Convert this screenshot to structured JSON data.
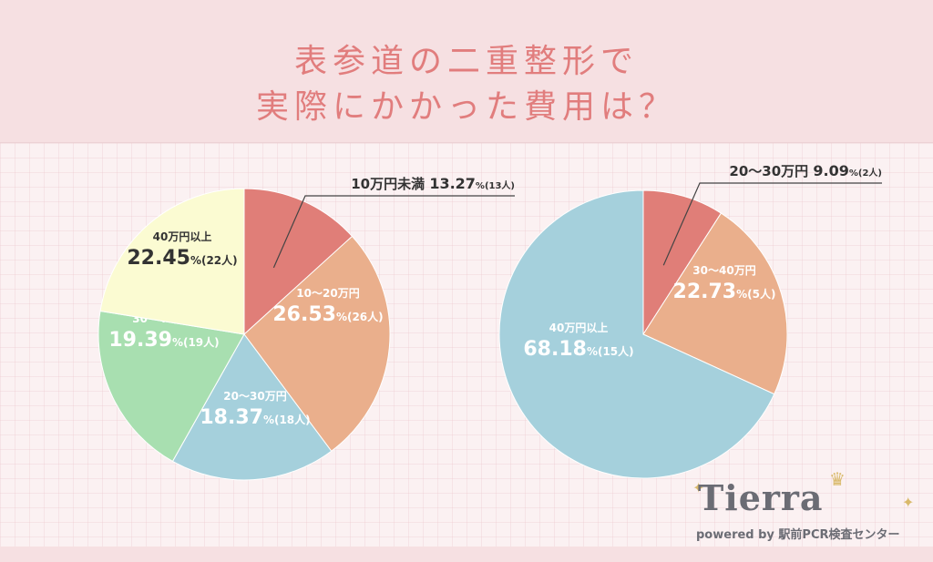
{
  "title": {
    "line1": "表参道の二重整形で",
    "line2": "実際にかかった費用は？"
  },
  "logo": {
    "name": "Tierra",
    "tagline": "powered by 駅前PCR検査センター"
  },
  "chart_data": [
    {
      "type": "pie",
      "slices": [
        {
          "label": "10万円未満",
          "value": 13.27,
          "pct_text": "13.27",
          "count_text": "(13人)",
          "color": "#e07e78"
        },
        {
          "label": "10〜20万円",
          "value": 26.53,
          "pct_text": "26.53",
          "count_text": "(26人)",
          "color": "#eaaf8c"
        },
        {
          "label": "20〜30万円",
          "value": 18.37,
          "pct_text": "18.37",
          "count_text": "(18人)",
          "color": "#a5d0dc"
        },
        {
          "label": "30〜40万円",
          "value": 19.39,
          "pct_text": "19.39",
          "count_text": "(19人)",
          "color": "#a8dfb0"
        },
        {
          "label": "40万円以上",
          "value": 22.45,
          "pct_text": "22.45",
          "count_text": "(22人)",
          "color": "#fbfbd2"
        }
      ],
      "unit": "%"
    },
    {
      "type": "pie",
      "slices": [
        {
          "label": "20〜30万円",
          "value": 9.09,
          "pct_text": "9.09",
          "count_text": "(2人)",
          "color": "#e07e78"
        },
        {
          "label": "30〜40万円",
          "value": 22.73,
          "pct_text": "22.73",
          "count_text": "(5人)",
          "color": "#eaaf8c"
        },
        {
          "label": "40万円以上",
          "value": 68.18,
          "pct_text": "68.18",
          "count_text": "(15人)",
          "color": "#a5d0dc"
        }
      ],
      "unit": "%"
    }
  ]
}
